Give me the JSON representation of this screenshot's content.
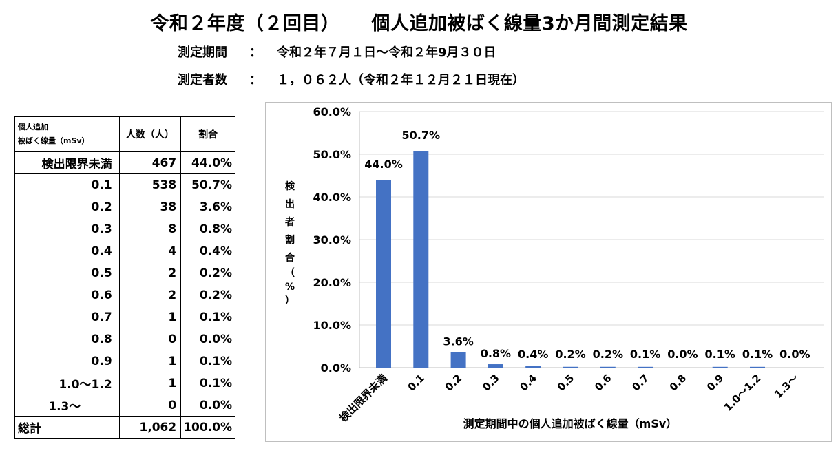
{
  "header": {
    "title_left": "令和２年度（２回目）",
    "title_right": "個人追加被ばく線量3か月間測定結果",
    "period_label": "測定期間",
    "period_colon": "：",
    "period_value": "令和２年７月１日～令和２年9月３０日",
    "count_label": "測定者数",
    "count_colon": "：",
    "count_value": "１，０６２人（令和２年１２月２１日現在）"
  },
  "table": {
    "head_line1": "個人追加",
    "head_line2": "被ばく線量（mSv）",
    "head_people": "人数（人）",
    "head_ratio": "割合",
    "rows": [
      {
        "dose": "検出限界未満",
        "people": "467",
        "ratio": "44.0%"
      },
      {
        "dose": "0.1",
        "people": "538",
        "ratio": "50.7%"
      },
      {
        "dose": "0.2",
        "people": "38",
        "ratio": "3.6%"
      },
      {
        "dose": "0.3",
        "people": "8",
        "ratio": "0.8%"
      },
      {
        "dose": "0.4",
        "people": "4",
        "ratio": "0.4%"
      },
      {
        "dose": "0.5",
        "people": "2",
        "ratio": "0.2%"
      },
      {
        "dose": "0.6",
        "people": "2",
        "ratio": "0.2%"
      },
      {
        "dose": "0.7",
        "people": "1",
        "ratio": "0.1%"
      },
      {
        "dose": "0.8",
        "people": "0",
        "ratio": "0.0%"
      },
      {
        "dose": "0.9",
        "people": "1",
        "ratio": "0.1%"
      },
      {
        "dose": "1.0～1.2",
        "people": "1",
        "ratio": "0.1%"
      },
      {
        "dose": "1.3～",
        "people": "0",
        "ratio": "0.0%"
      }
    ],
    "total": {
      "dose": "総計",
      "people": "1,062",
      "ratio": "100.0%"
    }
  },
  "chart_data": {
    "type": "bar",
    "categories": [
      "検出限界未満",
      "0.1",
      "0.2",
      "0.3",
      "0.4",
      "0.5",
      "0.6",
      "0.7",
      "0.8",
      "0.9",
      "1.0～1.2",
      "1.3～"
    ],
    "values": [
      44.0,
      50.7,
      3.6,
      0.8,
      0.4,
      0.2,
      0.2,
      0.1,
      0.0,
      0.1,
      0.1,
      0.0
    ],
    "data_labels": [
      "44.0%",
      "50.7%",
      "3.6%",
      "0.8%",
      "0.4%",
      "0.2%",
      "0.2%",
      "0.1%",
      "0.0%",
      "0.1%",
      "0.1%",
      "0.0%"
    ],
    "xlabel": "測定期間中の個人追加被ばく線量（mSv）",
    "ylabel_chars": [
      "検",
      "出",
      "者",
      "割",
      "合",
      "（",
      "%",
      "）"
    ],
    "ylim": [
      0,
      60
    ],
    "yticks": [
      0,
      10,
      20,
      30,
      40,
      50,
      60
    ],
    "ytick_labels": [
      "0.0%",
      "10.0%",
      "20.0%",
      "30.0%",
      "40.0%",
      "50.0%",
      "60.0%"
    ],
    "grid": true,
    "legend": "none",
    "bar_color": "#4472c4",
    "grid_color": "#d9d9d9"
  }
}
